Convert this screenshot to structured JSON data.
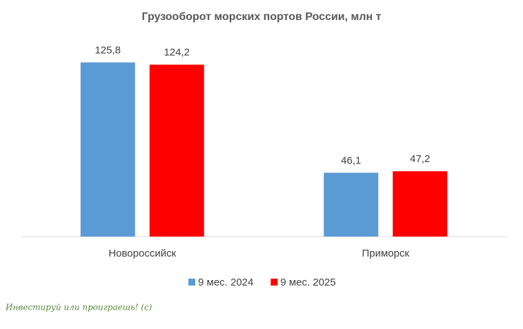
{
  "chart_data": {
    "type": "bar",
    "title": "Грузооборот морских портов России, млн т",
    "categories": [
      "Новороссийск",
      "Приморск"
    ],
    "series": [
      {
        "name": "9 мес. 2024",
        "color": "#5b9bd5",
        "values": [
          125.8,
          46.1
        ],
        "value_labels": [
          "125,8",
          "46,1"
        ]
      },
      {
        "name": "9 мес. 2025",
        "color": "#ff0000",
        "values": [
          124.2,
          47.2
        ],
        "value_labels": [
          "124,2",
          "47,2"
        ]
      }
    ],
    "ylim": [
      0,
      140
    ],
    "legend": "bottom"
  },
  "watermark": "Инвестируй или проиграешь! (с)"
}
